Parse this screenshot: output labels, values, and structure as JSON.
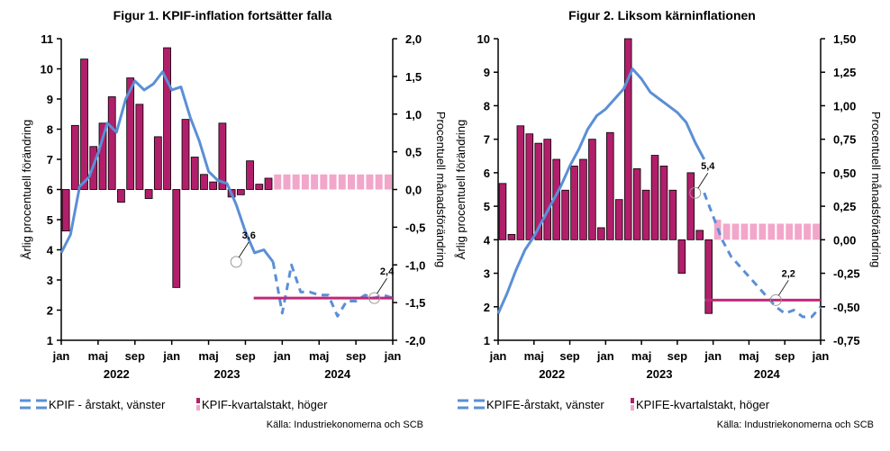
{
  "colors": {
    "bar": "#b11f6b",
    "bar_forecast": "#f2a6ca",
    "line": "#5b8fd6",
    "target": "#c0287a"
  },
  "chart_data": [
    {
      "type": "bar+line",
      "title": "Figur 1. KPIF-inflation fortsätter falla",
      "ylabel_left": "Årlig procentuell förändring",
      "ylabel_right": "Procentuell månadsförändring",
      "y_left_ticks": [
        "1",
        "2",
        "3",
        "4",
        "5",
        "6",
        "7",
        "8",
        "9",
        "10",
        "11"
      ],
      "y_left_range": [
        1,
        11
      ],
      "y_right_ticks": [
        "-2,0",
        "-1,5",
        "-1,0",
        "-0,5",
        "0,0",
        "0,5",
        "1,0",
        "1,5",
        "2,0"
      ],
      "y_right_range": [
        -2.0,
        2.0
      ],
      "x_ticks": [
        "jan",
        "maj",
        "sep",
        "jan",
        "maj",
        "sep",
        "jan",
        "maj",
        "sep",
        "jan"
      ],
      "x_year_labels": [
        "2022",
        "2023",
        "2024"
      ],
      "x_range_months": [
        0,
        36
      ],
      "bars_actual_right_axis": [
        -0.55,
        0.85,
        1.73,
        0.57,
        0.88,
        1.23,
        -0.17,
        1.48,
        1.13,
        -0.12,
        0.7,
        1.88,
        -1.3,
        0.93,
        0.43,
        0.2,
        0.1,
        0.88,
        -0.1,
        -0.07,
        0.38,
        0.07,
        0.15
      ],
      "bars_forecast_right_axis": [
        0.2,
        0.2,
        0.2,
        0.2,
        0.2,
        0.2,
        0.2,
        0.2,
        0.2,
        0.2,
        0.2,
        0.2,
        0.2
      ],
      "line_actual_left_axis": [
        3.9,
        4.5,
        6.1,
        6.4,
        7.2,
        8.2,
        7.9,
        9.0,
        9.6,
        9.3,
        9.5,
        9.9,
        9.3,
        9.4,
        8.4,
        7.6,
        6.6,
        6.3,
        6.2,
        5.5,
        4.6,
        3.9,
        4.0,
        3.6
      ],
      "line_forecast_left_axis": [
        3.6,
        1.9,
        3.5,
        2.6,
        2.6,
        2.5,
        2.5,
        1.8,
        2.3,
        2.3,
        2.5,
        2.4,
        2.5,
        2.4
      ],
      "target_line": {
        "value_left_axis": 2.4,
        "from_month": 20.9,
        "to_month": 36
      },
      "annotations": [
        {
          "label": "3,6",
          "x_month": 19,
          "y_left": 3.6
        },
        {
          "label": "2,4",
          "x_month": 34,
          "y_left": 2.4
        }
      ],
      "legend": [
        "KPIF - årstakt, vänster",
        "KPIF-kvartalstakt, höger"
      ],
      "source": "Källa: Industriekonomerna och SCB"
    },
    {
      "type": "bar+line",
      "title": "Figur 2. Liksom kärninflationen",
      "ylabel_left": "Årlig procentuell förändring",
      "ylabel_right": "Procentuell månadsförändring",
      "y_left_ticks": [
        "1",
        "2",
        "3",
        "4",
        "5",
        "6",
        "7",
        "8",
        "9",
        "10"
      ],
      "y_left_range": [
        1,
        10
      ],
      "y_right_ticks": [
        "-0,75",
        "-0,50",
        "-0,25",
        "0,00",
        "0,25",
        "0,50",
        "0,75",
        "1,00",
        "1,25",
        "1,50"
      ],
      "y_right_range": [
        -0.75,
        1.5
      ],
      "x_ticks": [
        "jan",
        "maj",
        "sep",
        "jan",
        "maj",
        "sep",
        "jan",
        "maj",
        "sep",
        "jan"
      ],
      "x_year_labels": [
        "2022",
        "2023",
        "2024"
      ],
      "x_range_months": [
        0,
        36
      ],
      "bars_actual_right_axis": [
        0.42,
        0.04,
        0.85,
        0.79,
        0.72,
        0.75,
        0.6,
        0.37,
        0.55,
        0.6,
        0.75,
        0.09,
        0.8,
        0.3,
        1.5,
        0.53,
        0.37,
        0.63,
        0.55,
        0.37,
        -0.25,
        0.5,
        0.07,
        -0.55
      ],
      "bars_forecast_right_axis": [
        0.15,
        0.12,
        0.12,
        0.12,
        0.12,
        0.12,
        0.12,
        0.12,
        0.12,
        0.12,
        0.12,
        0.12
      ],
      "line_actual_left_axis": [
        1.8,
        2.4,
        3.1,
        3.7,
        4.1,
        4.6,
        5.1,
        5.6,
        6.2,
        6.7,
        7.3,
        7.7,
        7.9,
        8.2,
        8.5,
        9.1,
        8.8,
        8.4,
        8.2,
        8.0,
        7.8,
        7.5,
        6.9,
        6.4
      ],
      "line_forecast_left_axis": [
        5.4,
        4.7,
        4.0,
        3.5,
        3.2,
        2.9,
        2.6,
        2.3,
        2.0,
        1.8,
        1.9,
        1.7,
        1.7,
        2.0
      ],
      "target_line": {
        "value_left_axis": 2.2,
        "from_month": 23.1,
        "to_month": 36
      },
      "annotations": [
        {
          "label": "5,4",
          "x_month": 22,
          "y_left": 5.4
        },
        {
          "label": "2,2",
          "x_month": 31,
          "y_left": 2.2
        }
      ],
      "legend": [
        "KPIFE-årstakt, vänster",
        "KPIFE-kvartalstakt, höger"
      ],
      "source": "Källa: Industriekonomerna och SCB"
    }
  ]
}
